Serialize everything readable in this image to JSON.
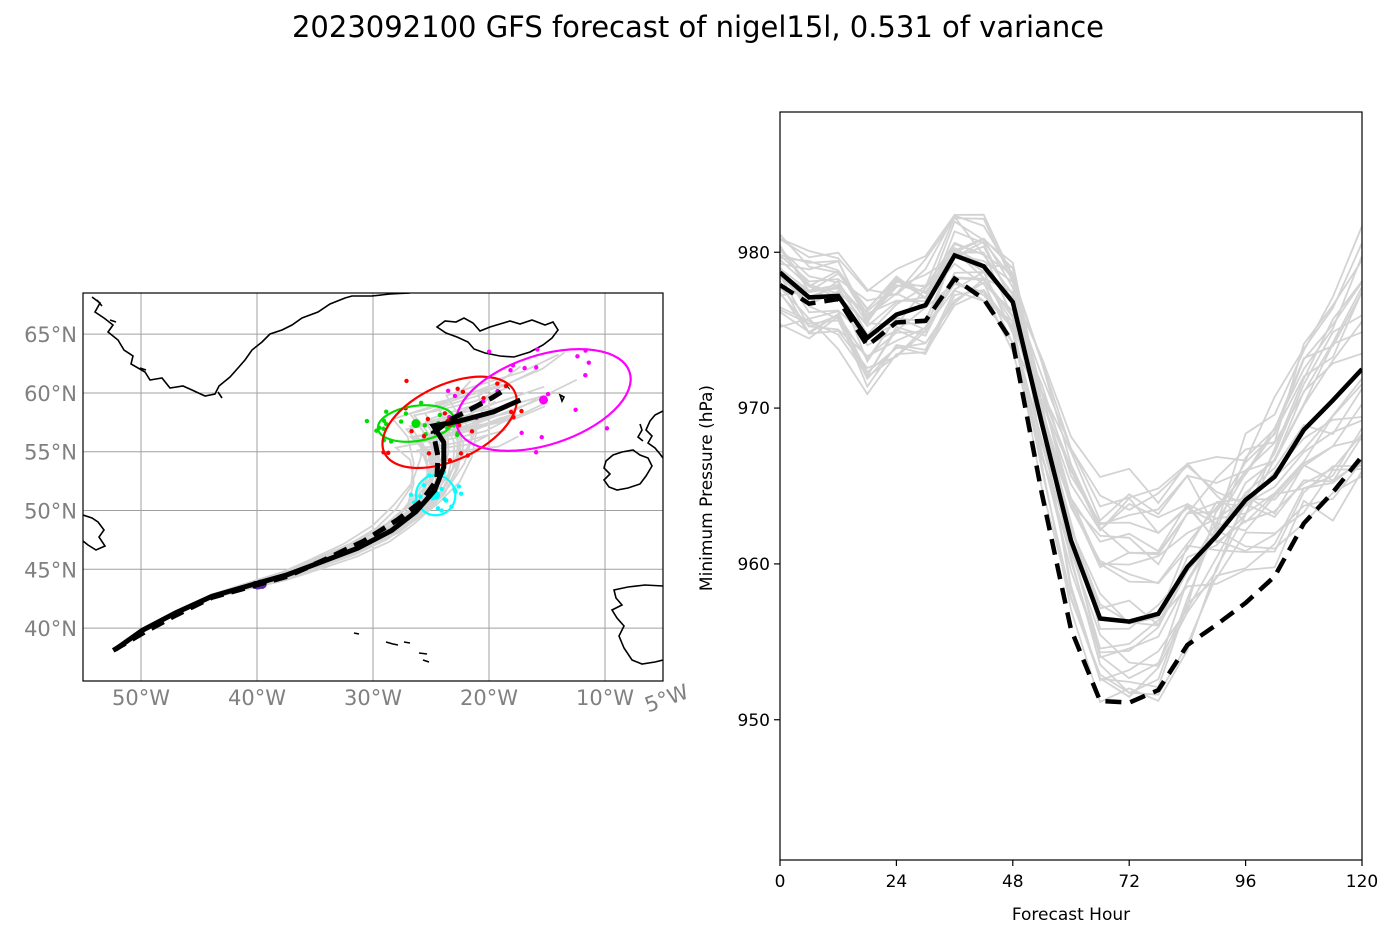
{
  "title": "2023092100 GFS forecast of nigel15l, 0.531 of variance",
  "map": {
    "lon_range": [
      -55,
      -5
    ],
    "lat_range": [
      35.5,
      68.5
    ],
    "lon_ticks": [
      -50,
      -40,
      -30,
      -20,
      -10,
      -5
    ],
    "lon_tick_labels": [
      "50°W",
      "40°W",
      "30°W",
      "20°W",
      "10°W",
      "5°W"
    ],
    "lat_ticks": [
      40,
      45,
      50,
      55,
      60,
      65
    ],
    "lat_tick_labels": [
      "40°N",
      "45°N",
      "50°N",
      "55°N",
      "60°N",
      "65°N"
    ],
    "gridlines": true,
    "track_color": "#000000",
    "ensemble_color": "#d3d3d3",
    "mean_track": [
      [
        -52.2,
        38.2
      ],
      [
        -49.9,
        39.8
      ],
      [
        -47.0,
        41.3
      ],
      [
        -43.9,
        42.7
      ],
      [
        -40.4,
        43.7
      ],
      [
        -37.5,
        44.5
      ],
      [
        -34.5,
        45.6
      ],
      [
        -31.3,
        46.8
      ],
      [
        -28.4,
        48.3
      ],
      [
        -26.3,
        49.9
      ],
      [
        -24.7,
        51.7
      ],
      [
        -23.9,
        53.7
      ],
      [
        -23.9,
        55.8
      ],
      [
        -24.8,
        57.2
      ],
      [
        -22.6,
        57.6
      ],
      [
        -19.6,
        58.4
      ],
      [
        -17.3,
        59.4
      ]
    ],
    "det_track": [
      [
        -52.4,
        38.1
      ],
      [
        -49.8,
        39.6
      ],
      [
        -47.0,
        41.1
      ],
      [
        -43.9,
        42.6
      ],
      [
        -40.3,
        43.6
      ],
      [
        -37.4,
        44.4
      ],
      [
        -34.2,
        45.8
      ],
      [
        -30.8,
        47.4
      ],
      [
        -27.9,
        49.2
      ],
      [
        -25.8,
        50.8
      ],
      [
        -24.5,
        52.6
      ],
      [
        -24.4,
        54.6
      ],
      [
        -24.8,
        56.6
      ],
      [
        -23.2,
        57.8
      ],
      [
        -21.6,
        58.6
      ],
      [
        -19.7,
        59.6
      ],
      [
        -18.3,
        60.5
      ]
    ],
    "ellipses": [
      {
        "color": "#00dd00",
        "cx": -26.3,
        "cy": 57.4,
        "rx": 3.3,
        "ry": 1.5,
        "angle": -8
      },
      {
        "color": "#ff0000",
        "cx": -23.4,
        "cy": 57.5,
        "rx": 6.2,
        "ry": 3.2,
        "angle": -25
      },
      {
        "color": "#ff00ff",
        "cx": -15.3,
        "cy": 59.4,
        "rx": 7.8,
        "ry": 3.8,
        "angle": -18
      },
      {
        "color": "#00ffff",
        "cx": -24.6,
        "cy": 51.3,
        "rx": 1.7,
        "ry": 1.7,
        "angle": 0
      }
    ],
    "initial_position_color": "#5b2a9e"
  },
  "pressure_chart": {
    "type": "line",
    "xlabel": "Forecast Hour",
    "ylabel": "Minimum Pressure (hPa)",
    "xlim": [
      0,
      120
    ],
    "ylim": [
      941,
      989
    ],
    "xticks": [
      0,
      24,
      48,
      72,
      96,
      120
    ],
    "yticks": [
      950,
      960,
      970,
      980
    ],
    "hours": [
      0,
      6,
      12,
      18,
      24,
      30,
      36,
      42,
      48,
      54,
      60,
      66,
      72,
      78,
      84,
      90,
      96,
      102,
      108,
      114,
      120
    ],
    "series": [
      {
        "style": "solid",
        "color": "#000000",
        "values": [
          978.7,
          977.1,
          977.2,
          974.5,
          976.0,
          976.6,
          979.8,
          979.1,
          976.8,
          969.0,
          961.5,
          956.5,
          956.3,
          956.8,
          959.8,
          961.8,
          964.1,
          965.6,
          968.6,
          970.5,
          972.5
        ]
      },
      {
        "style": "dashed",
        "color": "#000000",
        "values": [
          977.9,
          976.7,
          977.0,
          974.0,
          975.5,
          975.6,
          978.3,
          977.0,
          974.2,
          964.5,
          955.8,
          951.2,
          951.1,
          951.9,
          954.8,
          956.1,
          957.5,
          959.2,
          962.6,
          964.6,
          966.9
        ]
      }
    ]
  }
}
